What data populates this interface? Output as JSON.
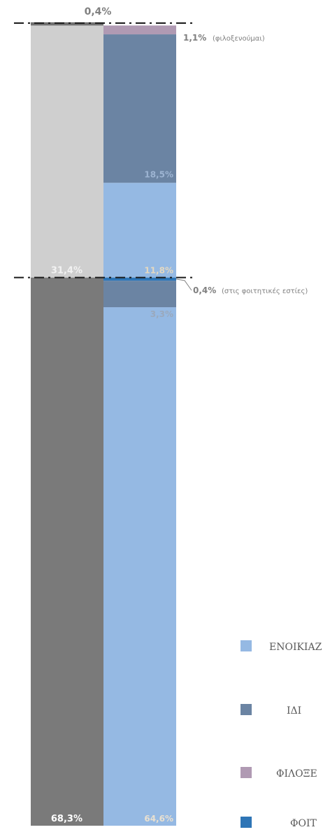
{
  "chart_data": {
    "type": "bar",
    "stacked": true,
    "ylim": [
      0,
      100
    ],
    "columns": [
      {
        "segments": [
          {
            "key": "seg_a",
            "value": 68.3,
            "label": "68,3%",
            "color": "#7a7a7a"
          },
          {
            "key": "seg_b",
            "value": 31.4,
            "label": "31,4%",
            "color": "#cfcfcf"
          },
          {
            "key": "seg_c",
            "value": 0.4,
            "label": "0,4%",
            "color": "#6f6f6f"
          }
        ]
      },
      {
        "segments": [
          {
            "key": "enoikiazo_1",
            "value": 64.6,
            "label": "64,6%",
            "color": "#95b9e3"
          },
          {
            "key": "idio_1",
            "value": 3.3,
            "label": "3,3%",
            "color": "#6b84a3"
          },
          {
            "key": "foitites_1",
            "value": 0.4,
            "label": "0,4%",
            "color": "#2e75b6"
          },
          {
            "key": "enoikiazo_2",
            "value": 11.8,
            "label": "11,8%",
            "color": "#95b9e3"
          },
          {
            "key": "idio_2",
            "value": 18.5,
            "label": "18,5%",
            "color": "#6b84a3"
          },
          {
            "key": "filoxenia",
            "value": 1.1,
            "label": "1,1%",
            "color": "#b09ab3"
          }
        ]
      }
    ],
    "annotations": {
      "filoxenia_value": "1,1%",
      "filoxenia_note": "(φιλοξενούμαι)",
      "foitites_value": "0,4%",
      "foitites_note": "(στις φοιτητικές εστίες)"
    },
    "legend": {
      "position": "bottom-right",
      "entries": [
        {
          "name": "ΕΝΟΙΚΙΑΖ",
          "color": "#95b9e3"
        },
        {
          "name": "ΙΔΙ",
          "color": "#6b84a3"
        },
        {
          "name": "ΦΙΛΟΞΕ",
          "color": "#b09ab3"
        },
        {
          "name": "ΦΟΙΤ",
          "color": "#2e75b6"
        }
      ]
    }
  }
}
